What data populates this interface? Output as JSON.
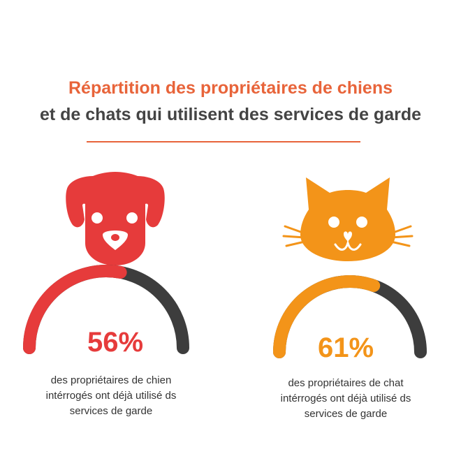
{
  "title": {
    "line1": "Répartition des propriétaires de chiens",
    "line2": "et de chats qui utilisent des services de garde"
  },
  "colors": {
    "title_accent": "#e8643a",
    "title_dark": "#444444",
    "dog": "#e63b3b",
    "cat": "#f39419",
    "remainder": "#3d3d3d"
  },
  "chart_data": [
    {
      "type": "gauge",
      "icon": "dog-icon",
      "value": 56,
      "max": 100,
      "value_label": "56%",
      "caption": [
        "des propriétaires de chien",
        "intérrogés ont déjà utilisé ds",
        "services de garde"
      ]
    },
    {
      "type": "gauge",
      "icon": "cat-icon",
      "value": 61,
      "max": 100,
      "value_label": "61%",
      "caption": [
        "des propriétaires de chat",
        "intérrogés ont déjà utilisé ds",
        "services de garde"
      ]
    }
  ]
}
